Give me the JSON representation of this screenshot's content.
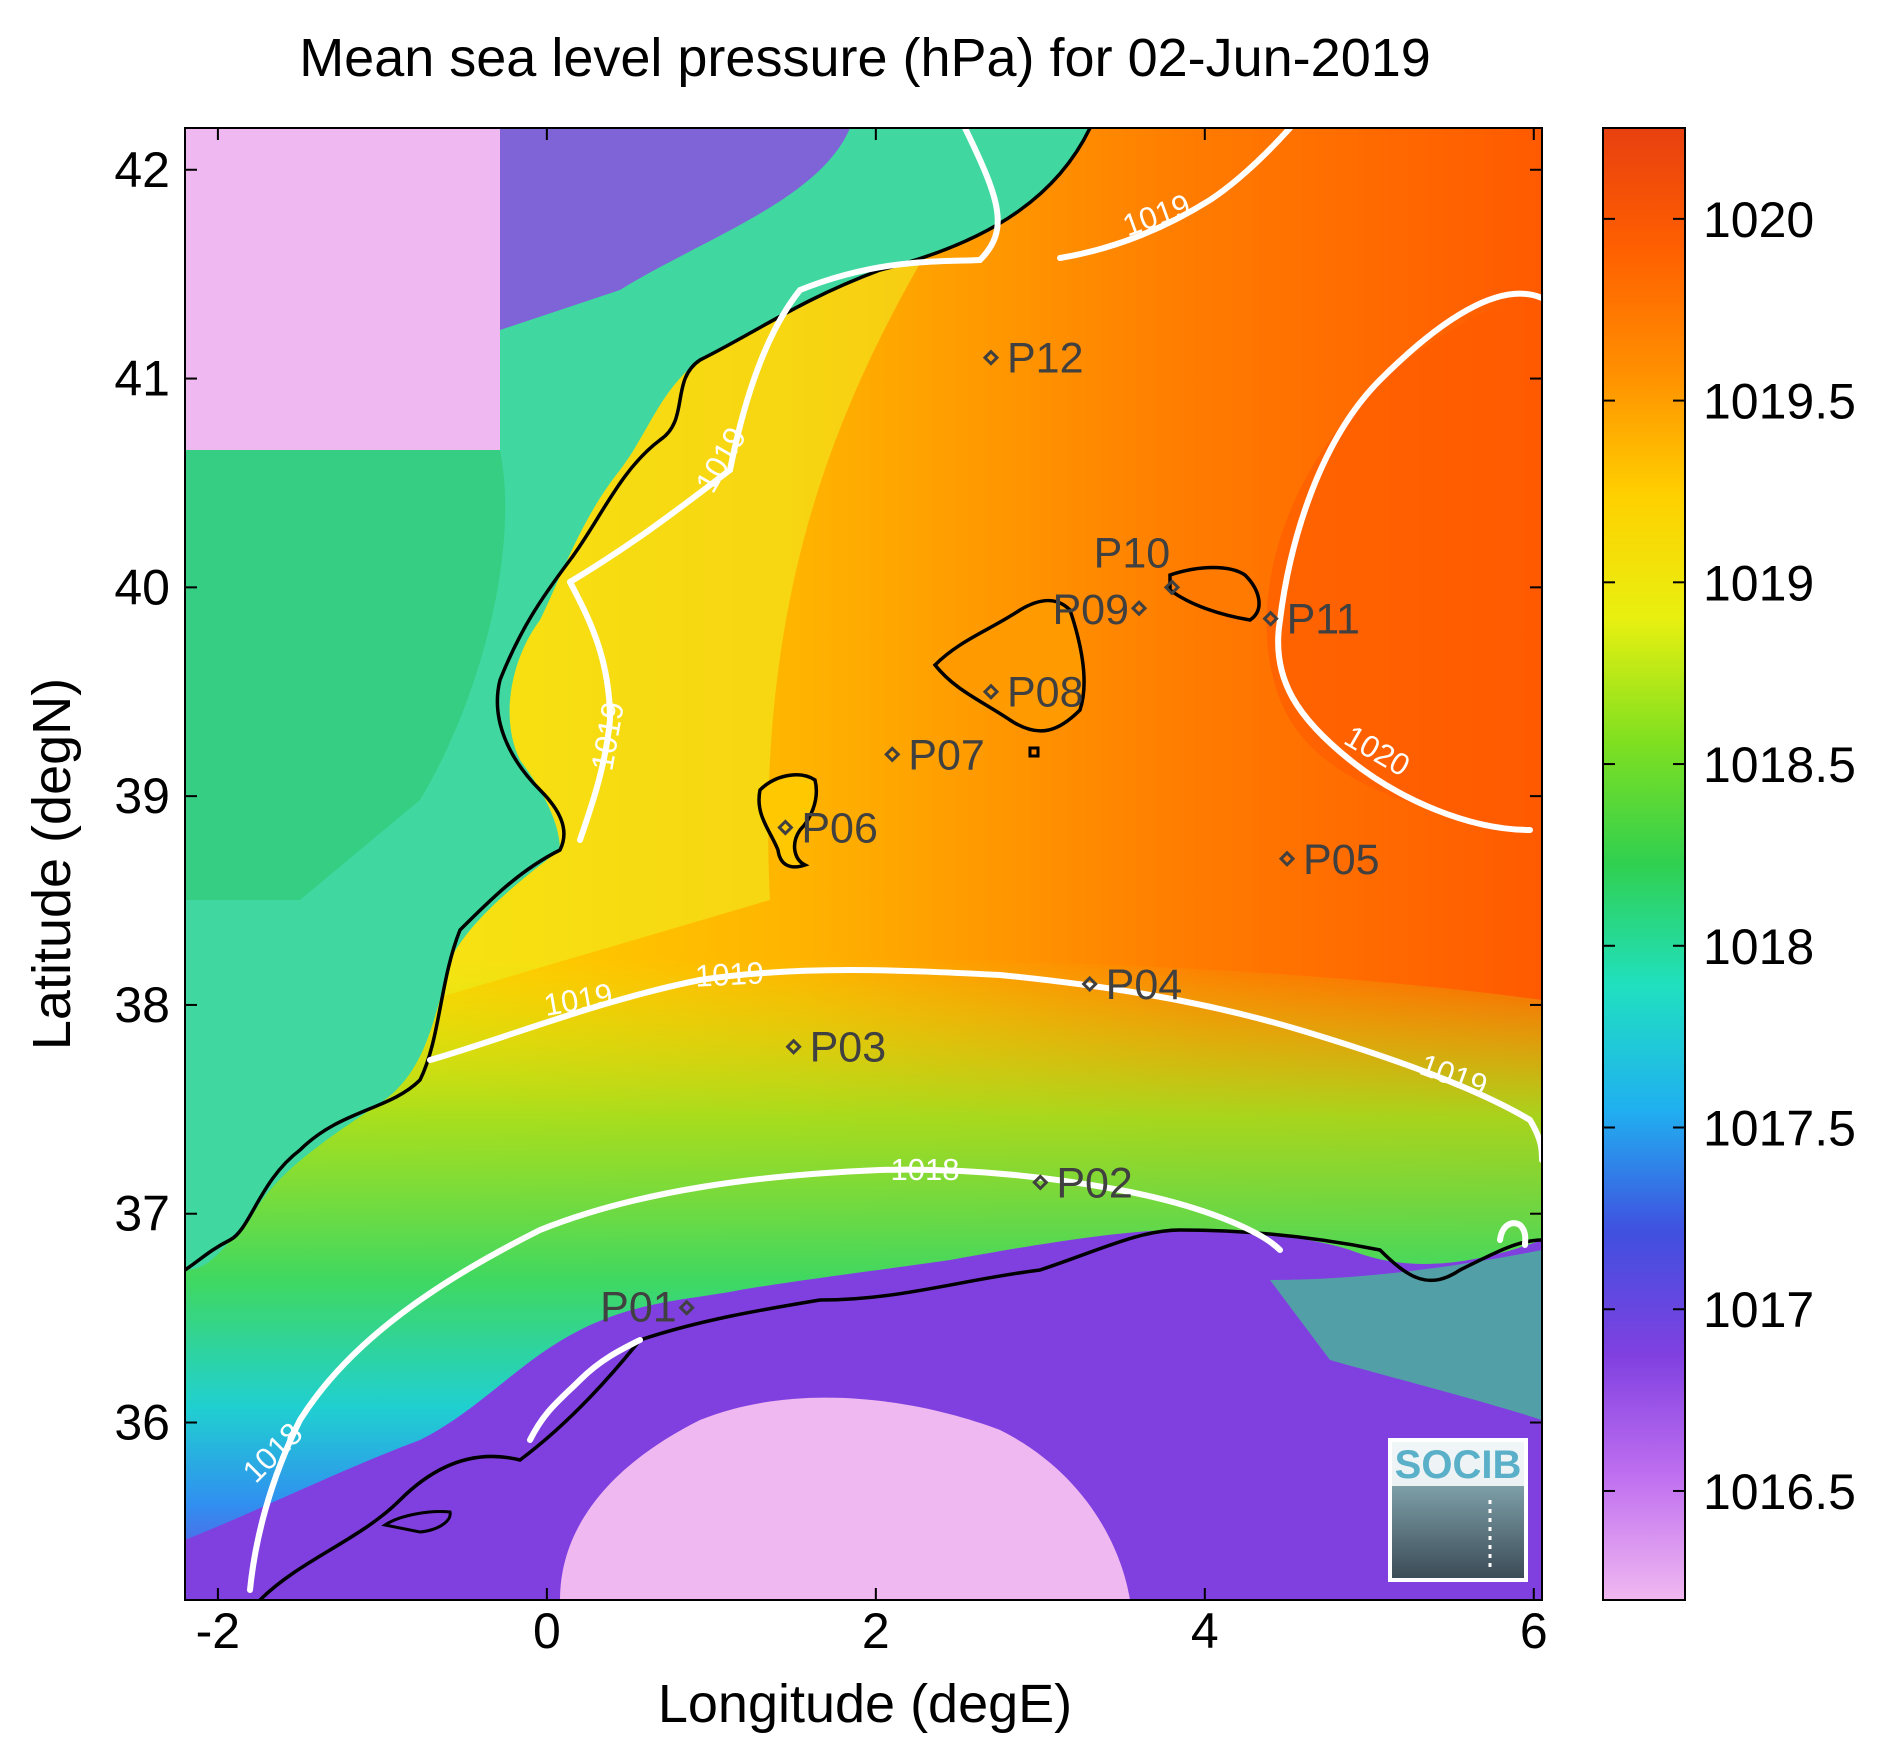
{
  "title": "Mean sea level pressure (hPa) for 02-Jun-2019",
  "xlabel": "Longitude (degE)",
  "ylabel": "Latitude (degN)",
  "xticks": [
    "-2",
    "0",
    "2",
    "4",
    "6"
  ],
  "yticks": [
    "42",
    "41",
    "40",
    "39",
    "38",
    "37",
    "36"
  ],
  "colorbar": {
    "ticks": [
      "1020",
      "1019.5",
      "1019",
      "1018.5",
      "1018",
      "1017.5",
      "1017",
      "1016.5"
    ],
    "colors": [
      "#f0b8f0",
      "#c070f0",
      "#8040e0",
      "#4050e0",
      "#20b0f0",
      "#20e0c0",
      "#30d050",
      "#80e020",
      "#e8f010",
      "#ffd000",
      "#ff9000",
      "#ff6000",
      "#e84010"
    ]
  },
  "contour_labels": [
    "1019",
    "1019",
    "1019",
    "1019",
    "1020",
    "1019",
    "1019",
    "1018",
    "1018"
  ],
  "points": [
    {
      "label": "P01",
      "lon": 0.85,
      "lat": 36.55
    },
    {
      "label": "P02",
      "lon": 3.0,
      "lat": 37.15
    },
    {
      "label": "P03",
      "lon": 1.5,
      "lat": 37.8
    },
    {
      "label": "P04",
      "lon": 3.3,
      "lat": 38.1
    },
    {
      "label": "P05",
      "lon": 4.5,
      "lat": 38.7
    },
    {
      "label": "P06",
      "lon": 1.45,
      "lat": 38.85
    },
    {
      "label": "P07",
      "lon": 2.1,
      "lat": 39.2
    },
    {
      "label": "P08",
      "lon": 2.7,
      "lat": 39.5
    },
    {
      "label": "P09",
      "lon": 3.6,
      "lat": 39.9
    },
    {
      "label": "P10",
      "lon": 3.8,
      "lat": 40.0
    },
    {
      "label": "P11",
      "lon": 4.4,
      "lat": 39.85
    },
    {
      "label": "P12",
      "lon": 2.7,
      "lat": 41.1
    }
  ],
  "logo": "SOCIB"
}
